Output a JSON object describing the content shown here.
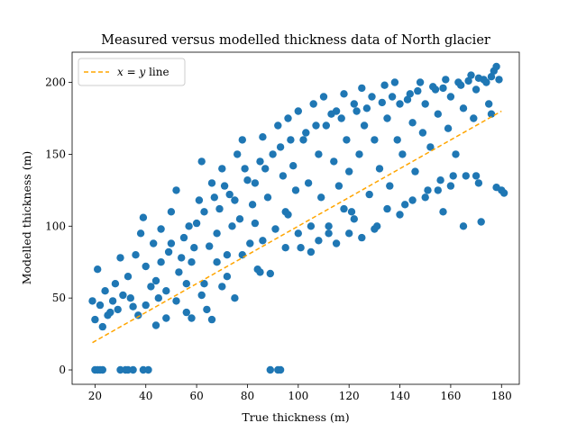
{
  "chart_data": {
    "type": "scatter",
    "title": "Measured versus modelled thickness data of North glacier",
    "xlabel": "True thickness (m)",
    "ylabel": "Modelled thickness (m)",
    "xlim": [
      11,
      187
    ],
    "ylim": [
      -10,
      221
    ],
    "xticks": [
      20,
      40,
      60,
      80,
      100,
      120,
      140,
      160,
      180
    ],
    "yticks": [
      0,
      50,
      100,
      150,
      200
    ],
    "legend": {
      "position": "top-left"
    },
    "grid": false,
    "series": [
      {
        "name": "x = y line",
        "kind": "line",
        "style": "dashed",
        "color": "#ffa500",
        "x": [
          19,
          180
        ],
        "y": [
          19,
          180
        ]
      },
      {
        "kind": "scatter",
        "color": "#1f77b4",
        "points": [
          [
            20,
            0
          ],
          [
            21,
            0
          ],
          [
            22,
            0
          ],
          [
            23,
            0
          ],
          [
            30,
            0
          ],
          [
            32,
            0
          ],
          [
            33,
            0
          ],
          [
            35,
            0
          ],
          [
            39,
            0
          ],
          [
            41,
            0
          ],
          [
            89,
            0
          ],
          [
            92,
            0
          ],
          [
            93,
            0
          ],
          [
            19,
            48
          ],
          [
            20,
            35
          ],
          [
            21,
            70
          ],
          [
            22,
            45
          ],
          [
            24,
            55
          ],
          [
            26,
            40
          ],
          [
            28,
            60
          ],
          [
            30,
            78
          ],
          [
            31,
            52
          ],
          [
            33,
            65
          ],
          [
            35,
            44
          ],
          [
            36,
            80
          ],
          [
            38,
            95
          ],
          [
            39,
            106
          ],
          [
            40,
            72
          ],
          [
            42,
            58
          ],
          [
            43,
            88
          ],
          [
            45,
            50
          ],
          [
            46,
            98
          ],
          [
            48,
            36
          ],
          [
            49,
            82
          ],
          [
            50,
            110
          ],
          [
            52,
            125
          ],
          [
            53,
            68
          ],
          [
            55,
            92
          ],
          [
            56,
            40
          ],
          [
            58,
            75
          ],
          [
            60,
            102
          ],
          [
            61,
            118
          ],
          [
            62,
            145
          ],
          [
            63,
            60
          ],
          [
            65,
            86
          ],
          [
            66,
            130
          ],
          [
            68,
            95
          ],
          [
            69,
            112
          ],
          [
            70,
            140
          ],
          [
            72,
            80
          ],
          [
            73,
            122
          ],
          [
            74,
            100
          ],
          [
            76,
            150
          ],
          [
            77,
            105
          ],
          [
            78,
            160
          ],
          [
            80,
            132
          ],
          [
            81,
            88
          ],
          [
            82,
            115
          ],
          [
            84,
            70
          ],
          [
            85,
            145
          ],
          [
            86,
            162
          ],
          [
            88,
            120
          ],
          [
            89,
            67
          ],
          [
            90,
            150
          ],
          [
            91,
            98
          ],
          [
            92,
            170
          ],
          [
            94,
            135
          ],
          [
            95,
            110
          ],
          [
            96,
            175
          ],
          [
            98,
            142
          ],
          [
            99,
            125
          ],
          [
            100,
            180
          ],
          [
            101,
            85
          ],
          [
            102,
            160
          ],
          [
            104,
            130
          ],
          [
            105,
            100
          ],
          [
            106,
            185
          ],
          [
            108,
            150
          ],
          [
            109,
            120
          ],
          [
            110,
            190
          ],
          [
            111,
            170
          ],
          [
            112,
            95
          ],
          [
            114,
            145
          ],
          [
            115,
            180
          ],
          [
            116,
            128
          ],
          [
            118,
            192
          ],
          [
            119,
            160
          ],
          [
            120,
            138
          ],
          [
            121,
            110
          ],
          [
            122,
            185
          ],
          [
            124,
            150
          ],
          [
            125,
            196
          ],
          [
            126,
            170
          ],
          [
            128,
            122
          ],
          [
            129,
            190
          ],
          [
            130,
            160
          ],
          [
            131,
            100
          ],
          [
            132,
            140
          ],
          [
            134,
            198
          ],
          [
            135,
            175
          ],
          [
            136,
            128
          ],
          [
            138,
            200
          ],
          [
            139,
            160
          ],
          [
            140,
            185
          ],
          [
            141,
            150
          ],
          [
            142,
            115
          ],
          [
            144,
            192
          ],
          [
            145,
            172
          ],
          [
            146,
            138
          ],
          [
            148,
            200
          ],
          [
            149,
            165
          ],
          [
            150,
            185
          ],
          [
            151,
            125
          ],
          [
            152,
            155
          ],
          [
            154,
            195
          ],
          [
            155,
            178
          ],
          [
            156,
            132
          ],
          [
            158,
            202
          ],
          [
            159,
            168
          ],
          [
            160,
            190
          ],
          [
            161,
            135
          ],
          [
            162,
            150
          ],
          [
            164,
            198
          ],
          [
            165,
            182
          ],
          [
            166,
            135
          ],
          [
            168,
            205
          ],
          [
            169,
            175
          ],
          [
            170,
            195
          ],
          [
            171,
            130
          ],
          [
            172,
            103
          ],
          [
            174,
            200
          ],
          [
            175,
            185
          ],
          [
            176,
            178
          ],
          [
            177,
            208
          ],
          [
            178,
            127
          ],
          [
            179,
            202
          ],
          [
            180,
            125
          ],
          [
            181,
            123
          ],
          [
            178,
            211
          ],
          [
            176,
            204
          ],
          [
            173,
            202
          ],
          [
            64,
            42
          ],
          [
            58,
            36
          ],
          [
            70,
            58
          ],
          [
            75,
            50
          ],
          [
            44,
            31
          ],
          [
            66,
            35
          ],
          [
            85,
            68
          ],
          [
            95,
            85
          ],
          [
            105,
            82
          ],
          [
            115,
            88
          ],
          [
            120,
            95
          ],
          [
            125,
            92
          ],
          [
            130,
            98
          ],
          [
            135,
            112
          ],
          [
            140,
            108
          ],
          [
            145,
            118
          ],
          [
            150,
            120
          ],
          [
            155,
            125
          ],
          [
            160,
            128
          ],
          [
            157,
            110
          ],
          [
            165,
            100
          ],
          [
            170,
            135
          ],
          [
            118,
            112
          ],
          [
            122,
            105
          ],
          [
            112,
            100
          ],
          [
            108,
            90
          ],
          [
            100,
            95
          ],
          [
            96,
            108
          ],
          [
            86,
            90
          ],
          [
            83,
            102
          ],
          [
            78,
            80
          ],
          [
            72,
            65
          ],
          [
            68,
            75
          ],
          [
            62,
            52
          ],
          [
            56,
            60
          ],
          [
            52,
            48
          ],
          [
            48,
            55
          ],
          [
            44,
            62
          ],
          [
            40,
            45
          ],
          [
            37,
            38
          ],
          [
            34,
            50
          ],
          [
            29,
            42
          ],
          [
            27,
            48
          ],
          [
            25,
            38
          ],
          [
            23,
            30
          ],
          [
            46,
            75
          ],
          [
            50,
            88
          ],
          [
            54,
            78
          ],
          [
            57,
            100
          ],
          [
            59,
            85
          ],
          [
            63,
            110
          ],
          [
            67,
            120
          ],
          [
            71,
            128
          ],
          [
            75,
            118
          ],
          [
            79,
            140
          ],
          [
            83,
            130
          ],
          [
            87,
            140
          ],
          [
            93,
            155
          ],
          [
            97,
            160
          ],
          [
            103,
            165
          ],
          [
            107,
            170
          ],
          [
            113,
            178
          ],
          [
            117,
            175
          ],
          [
            123,
            180
          ],
          [
            127,
            182
          ],
          [
            133,
            186
          ],
          [
            137,
            190
          ],
          [
            143,
            188
          ],
          [
            147,
            194
          ],
          [
            153,
            197
          ],
          [
            157,
            196
          ],
          [
            163,
            200
          ],
          [
            167,
            201
          ],
          [
            171,
            203
          ]
        ]
      }
    ]
  }
}
